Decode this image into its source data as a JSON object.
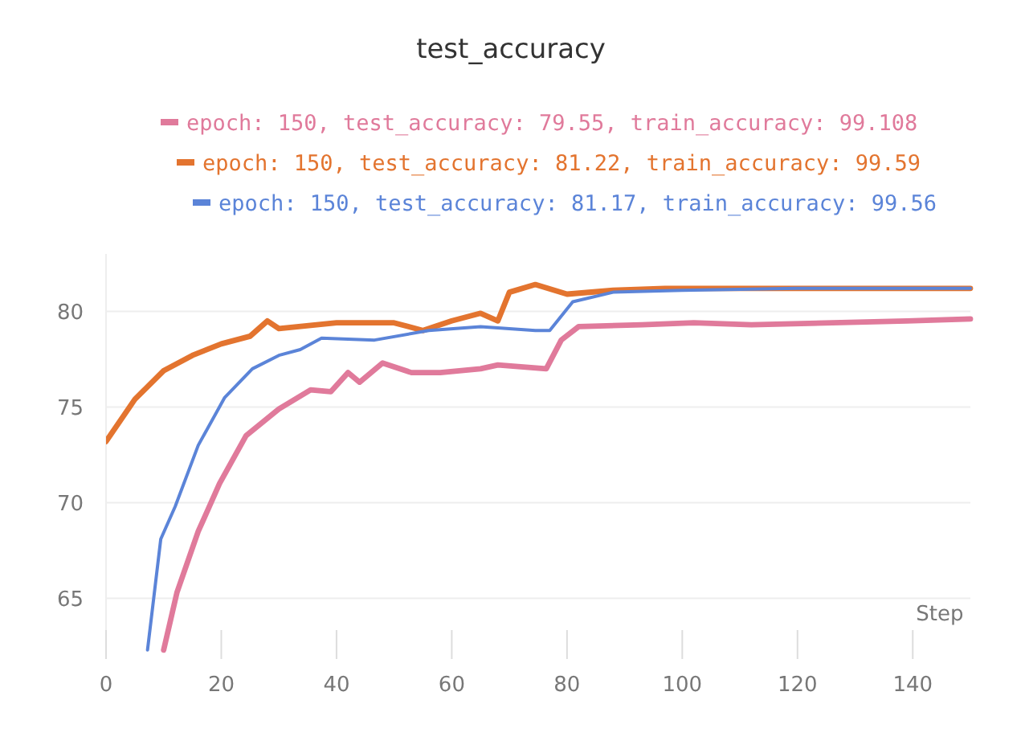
{
  "chart_data": {
    "type": "line",
    "title": "test_accuracy",
    "xlabel": "Step",
    "xlim": [
      0,
      150
    ],
    "xticks": [
      0,
      20,
      40,
      60,
      80,
      100,
      120,
      140
    ],
    "ylim": [
      62,
      83
    ],
    "yticks": [
      65,
      70,
      75,
      80
    ],
    "grid": "y",
    "legend": "top",
    "line_style": "solid",
    "series": [
      {
        "name": "epoch: 150, test_accuracy: 79.55, train_accuracy: 99.108",
        "color": "#e07a9b",
        "x": [
          10,
          12.3,
          16,
          19.7,
          24.3,
          30,
          35.5,
          39,
          42,
          44,
          48,
          53,
          58,
          65,
          68,
          76.4,
          79,
          82,
          93,
          102,
          112,
          139,
          150
        ],
        "values": [
          62.3,
          65.3,
          68.5,
          71.0,
          73.5,
          74.9,
          75.9,
          75.8,
          76.8,
          76.3,
          77.3,
          76.8,
          76.8,
          77.0,
          77.2,
          77.0,
          78.5,
          79.2,
          79.3,
          79.4,
          79.3,
          79.5,
          79.6
        ]
      },
      {
        "name": "epoch: 150, test_accuracy: 81.22, train_accuracy: 99.59",
        "color": "#e3742f",
        "x": [
          0,
          5,
          10,
          15,
          20,
          25,
          28,
          30,
          40,
          50,
          55,
          60,
          65,
          68,
          70,
          74.5,
          80,
          88,
          97,
          120,
          150
        ],
        "values": [
          73.2,
          75.4,
          76.9,
          77.7,
          78.3,
          78.7,
          79.5,
          79.1,
          79.4,
          79.4,
          79.0,
          79.5,
          79.9,
          79.5,
          81.0,
          81.4,
          80.9,
          81.1,
          81.2,
          81.2,
          81.2
        ]
      },
      {
        "name": "epoch: 150, test_accuracy: 81.17, train_accuracy: 99.56",
        "color": "#5b84d8",
        "x": [
          7.2,
          9.5,
          12,
          16,
          20.6,
          25.4,
          30,
          33.7,
          37.4,
          46.6,
          56,
          65,
          74.5,
          77,
          81,
          88,
          100,
          120,
          150
        ],
        "values": [
          62.3,
          68.1,
          69.8,
          73.0,
          75.5,
          77.0,
          77.7,
          78.0,
          78.6,
          78.5,
          79.0,
          79.2,
          79.0,
          79.0,
          80.5,
          81.0,
          81.1,
          81.2,
          81.2
        ]
      }
    ]
  }
}
